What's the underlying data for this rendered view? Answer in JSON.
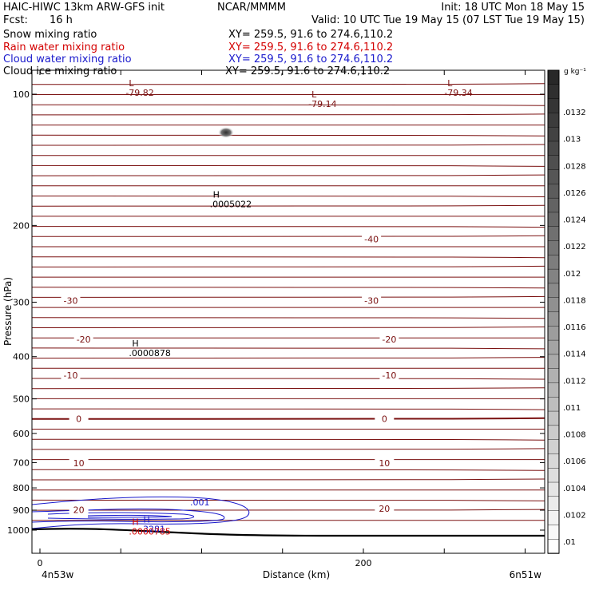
{
  "header": {
    "model": "HAIC-HIWC 13km ARW-GFS init",
    "org": "NCAR/MMMM",
    "init": "Init: 18 UTC Mon 18 May 15",
    "fcst_label": "Fcst:",
    "fcst_value": "16 h",
    "valid": "Valid: 10 UTC Tue 19 May 15 (07 LST Tue 19 May 15)"
  },
  "fields": [
    {
      "name": "Snow mixing ratio",
      "xy": "XY= 259.5, 91.6 to 274.6,110.2",
      "color": "#000000"
    },
    {
      "name": "Rain water mixing ratio",
      "xy": "XY= 259.5, 91.6 to 274.6,110.2",
      "color": "#d40000"
    },
    {
      "name": "Cloud water mixing ratio",
      "xy": "XY= 259.5, 91.6 to 274.6,110.2",
      "color": "#1a1acc"
    },
    {
      "name": "Cloud ice mixing ratio",
      "xy": "XY= 259.5, 91.6 to 274.6,110.2",
      "color": "#000000"
    }
  ],
  "chart_data": {
    "type": "cross-section contour",
    "xlabel": "Distance (km)",
    "ylabel": "Pressure (hPa)",
    "xlim": [
      0,
      300
    ],
    "ylim": [
      1050,
      50
    ],
    "y_scale": "log",
    "x_ticks": [
      0,
      200
    ],
    "y_ticks": [
      100,
      200,
      300,
      400,
      500,
      600,
      700,
      800,
      900,
      1000
    ],
    "x_endpoints": {
      "left": "4n53w",
      "right": "6n51w"
    },
    "colorbar": {
      "unit": "g kg⁻¹",
      "ticks": [
        ".0132",
        ".013",
        ".0128",
        ".0126",
        ".0124",
        ".0122",
        ".012",
        ".0118",
        ".0116",
        ".0114",
        ".0112",
        ".011",
        ".0108",
        ".0106",
        ".0104",
        ".0102",
        ".01"
      ]
    },
    "temperature_contours": {
      "color": "#7a1010",
      "labels": [
        {
          "text": "-40",
          "x": 205,
          "p": 217
        },
        {
          "text": "-30",
          "x": 19,
          "p": 300
        },
        {
          "text": "-30",
          "x": 205,
          "p": 300
        },
        {
          "text": "-20",
          "x": 27,
          "p": 368
        },
        {
          "text": "-20",
          "x": 216,
          "p": 368
        },
        {
          "text": "-10",
          "x": 19,
          "p": 445
        },
        {
          "text": "-10",
          "x": 216,
          "p": 445
        },
        {
          "text": "0",
          "x": 24,
          "p": 560
        },
        {
          "text": "0",
          "x": 213,
          "p": 560
        },
        {
          "text": "10",
          "x": 24,
          "p": 707
        },
        {
          "text": "10",
          "x": 213,
          "p": 707
        },
        {
          "text": "20",
          "x": 24,
          "p": 905
        },
        {
          "text": "20",
          "x": 213,
          "p": 900
        }
      ]
    },
    "extrema": [
      {
        "kind": "L",
        "value": "-79.82",
        "x": 53,
        "p": 97,
        "color": "#7a1010"
      },
      {
        "kind": "L",
        "value": "-79.14",
        "x": 166,
        "p": 103,
        "color": "#7a1010"
      },
      {
        "kind": "L",
        "value": "-79.34",
        "x": 250,
        "p": 97,
        "color": "#7a1010"
      },
      {
        "kind": "H",
        "value": ".0005022",
        "x": 105,
        "p": 175,
        "color": "#000000"
      },
      {
        "kind": "H",
        "value": ".0000878",
        "x": 55,
        "p": 384,
        "color": "#000000"
      },
      {
        "kind": "H",
        "value": ".3281",
        "x": 62,
        "p": 973,
        "color": "#1a1acc"
      },
      {
        "kind": "H",
        "value": ".0000785",
        "x": 55,
        "p": 985,
        "color": "#d40000"
      }
    ],
    "cloud_water_contour_label": ".001"
  }
}
